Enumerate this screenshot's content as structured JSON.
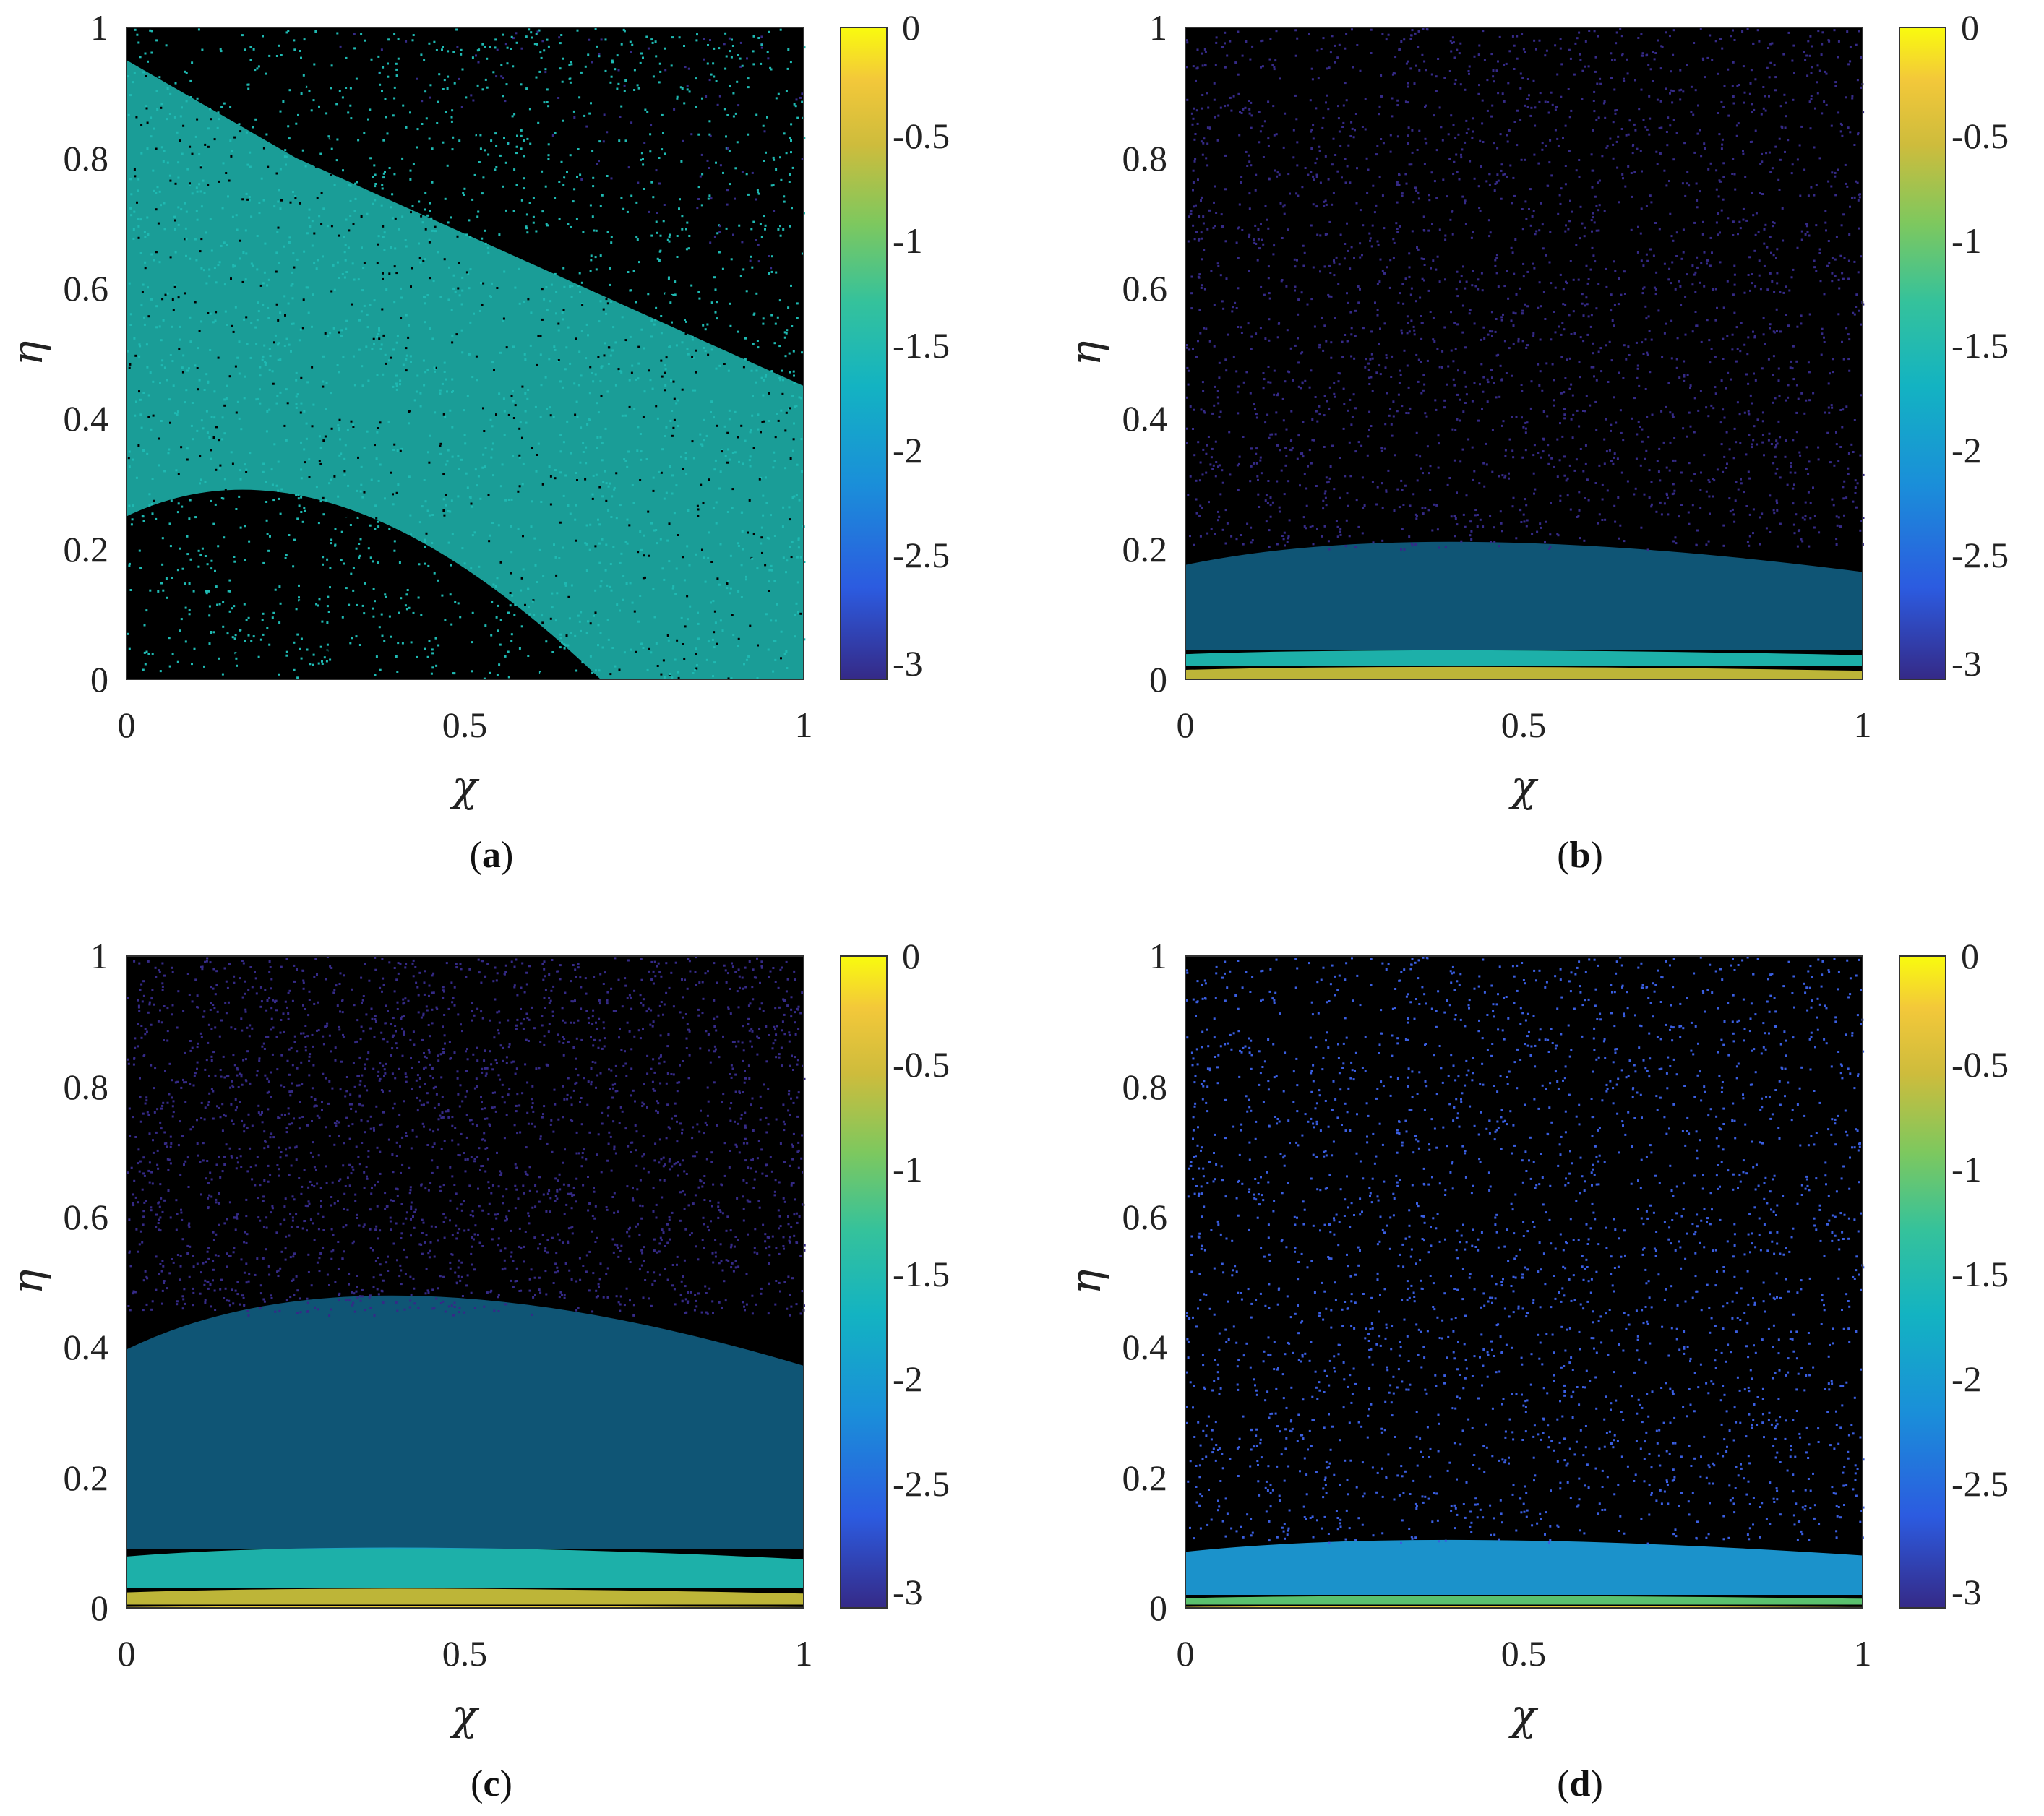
{
  "figure": {
    "panels": [
      {
        "id": "a",
        "caption_open": "(",
        "caption_letter": "a",
        "caption_close": ")"
      },
      {
        "id": "b",
        "caption_open": "(",
        "caption_letter": "b",
        "caption_close": ")"
      },
      {
        "id": "c",
        "caption_open": "(",
        "caption_letter": "c",
        "caption_close": ")"
      },
      {
        "id": "d",
        "caption_open": "(",
        "caption_letter": "d",
        "caption_close": ")"
      }
    ]
  },
  "chart_data": [
    {
      "panel": "a",
      "type": "heatmap",
      "xlabel": "χ",
      "ylabel": "η",
      "xlim": [
        0,
        1
      ],
      "ylim": [
        0,
        1
      ],
      "xticks": [
        "0",
        "0.5",
        "1"
      ],
      "yticks": [
        "0",
        "0.2",
        "0.4",
        "0.6",
        "0.8",
        "1"
      ],
      "colorbar": {
        "range": [
          -3,
          0
        ],
        "ticks": [
          "0",
          "-0.5",
          "-1",
          "-1.5",
          "-2",
          "-2.5",
          "-3"
        ]
      },
      "background": "#000000",
      "colormap": [
        "#352a87",
        "#3a5ee0",
        "#1c9ad6",
        "#1fb9b2",
        "#5fcb74",
        "#c7bf3b",
        "#f6d93a",
        "#f9fb0e"
      ],
      "bands": [
        {
          "density": "diagonal",
          "level": -1.75,
          "description_level_only": true
        }
      ],
      "dominant_level": -1.75,
      "sparse_level": -2.75
    },
    {
      "panel": "b",
      "type": "heatmap",
      "xlabel": "χ",
      "ylabel": "η",
      "xlim": [
        0,
        1
      ],
      "ylim": [
        0,
        1
      ],
      "xticks": [
        "0",
        "0.5",
        "1"
      ],
      "yticks": [
        "0",
        "0.2",
        "0.4",
        "0.6",
        "0.8",
        "1"
      ],
      "colorbar": {
        "range": [
          -3,
          0
        ],
        "ticks": [
          "0",
          "-0.5",
          "-1",
          "-1.5",
          "-2",
          "-2.5",
          "-3"
        ]
      },
      "background": "#000000",
      "colormap": [
        "#352a87",
        "#3a5ee0",
        "#1c9ad6",
        "#1fb9b2",
        "#5fcb74",
        "#c7bf3b",
        "#f6d93a",
        "#f9fb0e"
      ],
      "layers": [
        {
          "eta_top": 0.02,
          "level": -1.1
        },
        {
          "eta_top": 0.045,
          "level": -1.6
        },
        {
          "eta_top": 0.2,
          "level": -1.95
        },
        {
          "eta_top": 1.0,
          "level": -2.7
        }
      ]
    },
    {
      "panel": "c",
      "type": "heatmap",
      "xlabel": "χ",
      "ylabel": "η",
      "xlim": [
        0,
        1
      ],
      "ylim": [
        0,
        1
      ],
      "xticks": [
        "0",
        "0.5",
        "1"
      ],
      "yticks": [
        "0",
        "0.2",
        "0.4",
        "0.6",
        "0.8",
        "1"
      ],
      "colorbar": {
        "range": [
          -3,
          0
        ],
        "ticks": [
          "0",
          "-0.5",
          "-1",
          "-1.5",
          "-2",
          "-2.5",
          "-3"
        ]
      },
      "background": "#000000",
      "colormap": [
        "#352a87",
        "#3a5ee0",
        "#1c9ad6",
        "#1fb9b2",
        "#5fcb74",
        "#c7bf3b",
        "#f6d93a",
        "#f9fb0e"
      ],
      "layers": [
        {
          "eta_top": 0.005,
          "level": -0.6
        },
        {
          "eta_top": 0.03,
          "level": -1.1
        },
        {
          "eta_top": 0.09,
          "level": -1.6
        },
        {
          "eta_top": 0.45,
          "level": -1.95
        },
        {
          "eta_top": 1.0,
          "level": -2.7
        }
      ]
    },
    {
      "panel": "d",
      "type": "heatmap",
      "xlabel": "χ",
      "ylabel": "η",
      "xlim": [
        0,
        1
      ],
      "ylim": [
        0,
        1
      ],
      "xticks": [
        "0",
        "0.5",
        "1"
      ],
      "yticks": [
        "0",
        "0.2",
        "0.4",
        "0.6",
        "0.8",
        "1"
      ],
      "colorbar": {
        "range": [
          -3,
          0
        ],
        "ticks": [
          "0",
          "-0.5",
          "-1",
          "-1.5",
          "-2",
          "-2.5",
          "-3"
        ]
      },
      "background": "#000000",
      "colormap": [
        "#352a87",
        "#3a5ee0",
        "#1c9ad6",
        "#1fb9b2",
        "#5fcb74",
        "#c7bf3b",
        "#f6d93a",
        "#f9fb0e"
      ],
      "layers": [
        {
          "eta_top": 0.005,
          "level": -0.6
        },
        {
          "eta_top": 0.02,
          "level": -1.4
        },
        {
          "eta_top": 0.1,
          "level": -1.95
        },
        {
          "eta_top": 1.0,
          "level": -2.6
        }
      ]
    }
  ]
}
